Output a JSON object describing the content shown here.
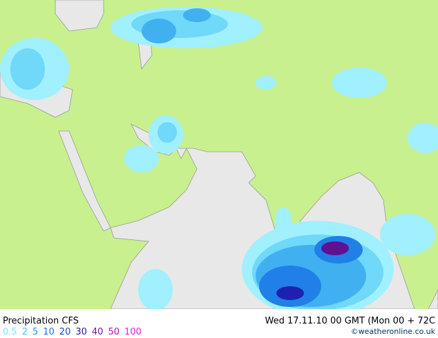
{
  "title": "Precipitation CFS",
  "timestamp": "Wed 17.11.10 00 GMT (Mon 00 + 72C",
  "credit": "©weatheronline.co.uk",
  "legend": [
    {
      "label": "0.5",
      "color": "#78e8ff"
    },
    {
      "label": "2",
      "color": "#40c8f8"
    },
    {
      "label": "5",
      "color": "#2098f0"
    },
    {
      "label": "10",
      "color": "#1870e0"
    },
    {
      "label": "20",
      "color": "#1840c0"
    },
    {
      "label": "30",
      "color": "#2020a0"
    },
    {
      "label": "40",
      "color": "#7010a0"
    },
    {
      "label": "50",
      "color": "#b010b0"
    },
    {
      "label": "100",
      "color": "#e020e0"
    }
  ]
}
